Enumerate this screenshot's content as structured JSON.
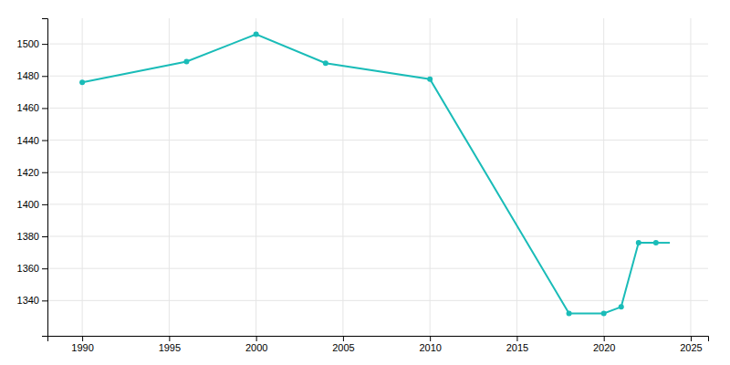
{
  "chart_data": {
    "type": "line",
    "x": [
      1990,
      1996,
      2000,
      2004,
      2010,
      2018,
      2020,
      2021,
      2022,
      2023
    ],
    "values": [
      1476,
      1489,
      1506,
      1488,
      1478,
      1332,
      1332,
      1336,
      1376,
      1376
    ],
    "xerr": [
      null,
      null,
      null,
      null,
      null,
      null,
      null,
      null,
      null,
      0.8
    ],
    "color": "#1abcb8",
    "marker": "circle",
    "xlim": [
      1988,
      2026
    ],
    "ylim": [
      1318,
      1516
    ],
    "xticks": [
      1990,
      1995,
      2000,
      2005,
      2010,
      2015,
      2020,
      2025
    ],
    "yticks": [
      1340,
      1360,
      1380,
      1400,
      1420,
      1440,
      1460,
      1480,
      1500
    ],
    "grid": true
  }
}
